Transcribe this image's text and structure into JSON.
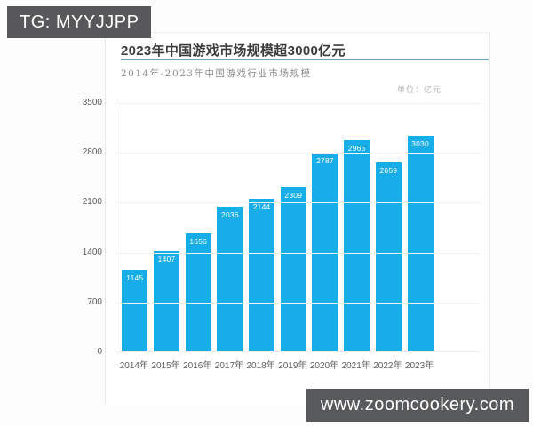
{
  "badge": {
    "text": "TG: MYYJJPP"
  },
  "watermark": {
    "text": "www.zoomcookery.com"
  },
  "card": {
    "title": "2023年中国游戏市场规模超3000亿元",
    "subtitle": "2014年-2023年中国游戏行业市场规模",
    "unit_label": "单位：亿元"
  },
  "colors": {
    "bar": "#16ade8",
    "title_underline": "#6a9fb5",
    "badge_background": "#58585a",
    "watermark_background": "#58595b"
  },
  "chart_data": {
    "type": "bar",
    "title": "2014年-2023年中国游戏行业市场规模",
    "categories": [
      "2014年",
      "2015年",
      "2016年",
      "2017年",
      "2018年",
      "2019年",
      "2020年",
      "2021年",
      "2022年",
      "2023年"
    ],
    "values": [
      1145,
      1407,
      1656,
      2036,
      2144,
      2309,
      2787,
      2965,
      2659,
      3030
    ],
    "xlabel": "",
    "ylabel": "亿元",
    "ylim": [
      0,
      3500
    ],
    "yticks": [
      0,
      700,
      1400,
      2100,
      2800,
      3500
    ],
    "grid": true,
    "legend": false,
    "value_labels_position": "inside-top",
    "bar_color": "#16ade8"
  }
}
